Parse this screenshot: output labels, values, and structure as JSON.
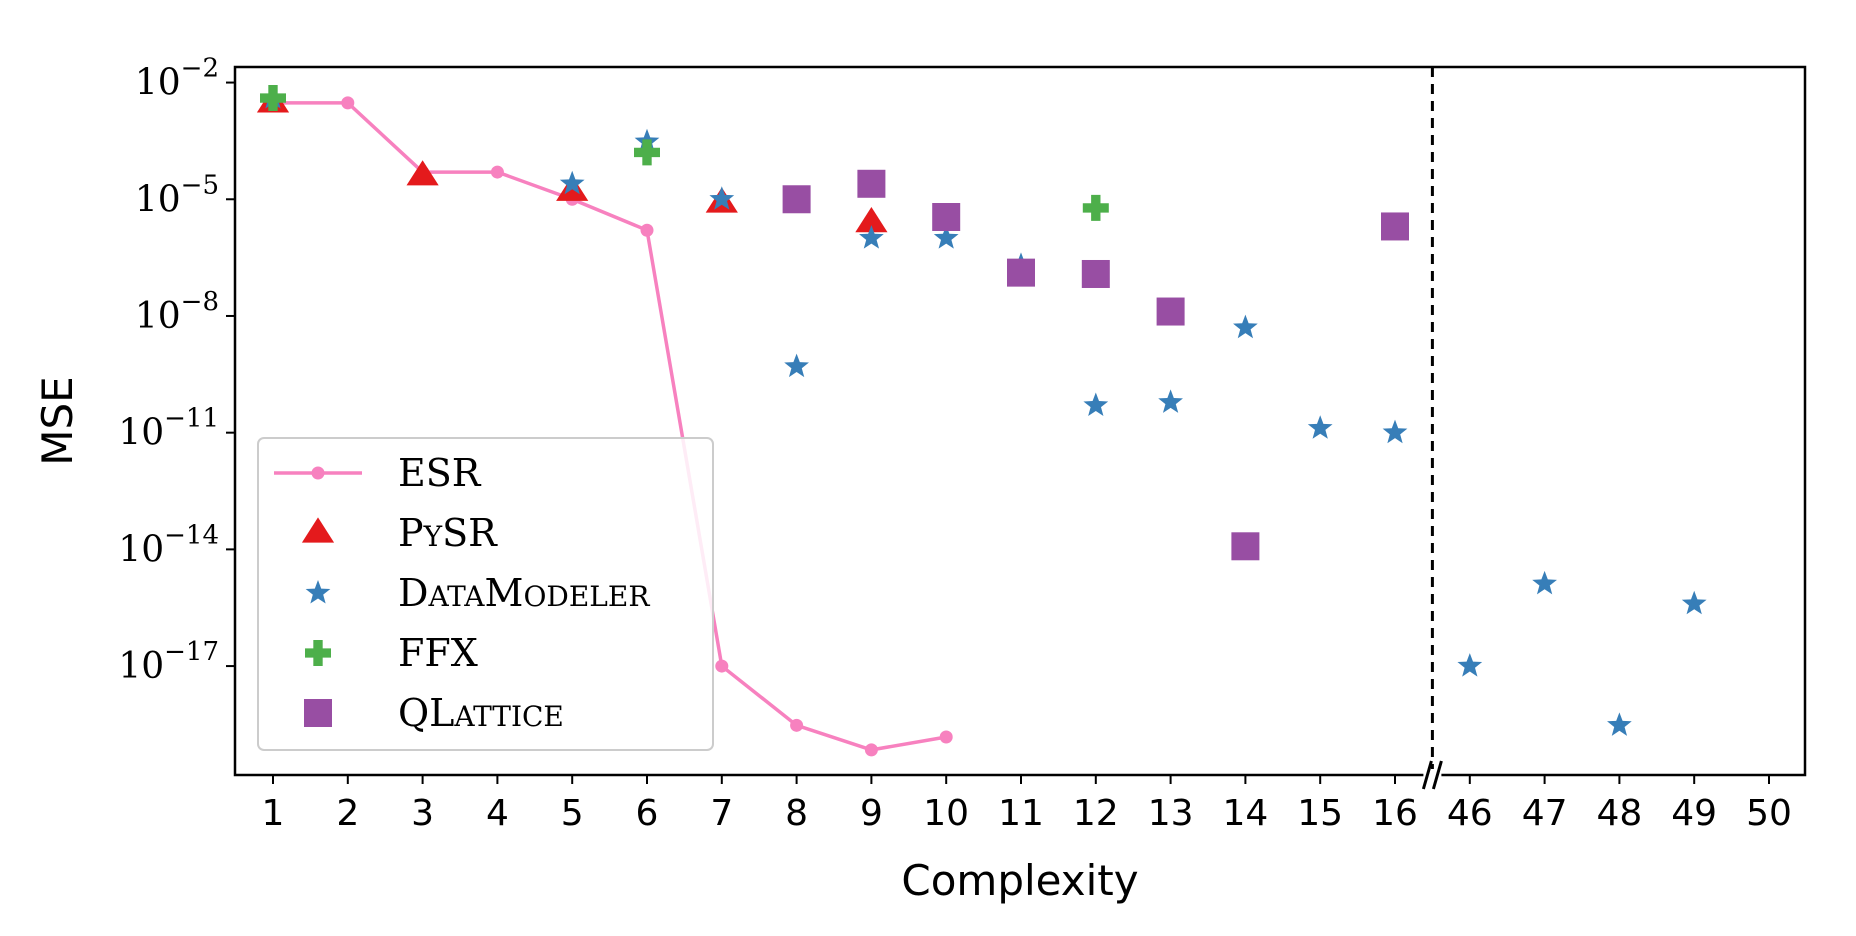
{
  "chart_data": {
    "type": "scatter",
    "xlabel": "Complexity",
    "ylabel": "MSE",
    "y_scale": "log",
    "ylim_exponents": [
      -19.8,
      -1.6
    ],
    "yticks": [
      {
        "base": "10",
        "exp": "−2",
        "value": -2
      },
      {
        "base": "10",
        "exp": "−5",
        "value": -5
      },
      {
        "base": "10",
        "exp": "−8",
        "value": -8
      },
      {
        "base": "10",
        "exp": "−11",
        "value": -11
      },
      {
        "base": "10",
        "exp": "−14",
        "value": -14
      },
      {
        "base": "10",
        "exp": "−17",
        "value": -17
      }
    ],
    "x_categories": [
      "1",
      "2",
      "3",
      "4",
      "5",
      "6",
      "7",
      "8",
      "9",
      "10",
      "11",
      "12",
      "13",
      "14",
      "15",
      "16",
      "46",
      "47",
      "48",
      "49",
      "50"
    ],
    "axis_break_between": [
      "16",
      "46"
    ],
    "legend_position": "lower-left",
    "grid": false,
    "series": [
      {
        "name": "ESR",
        "marker": "circle-line",
        "color": "#f781bf",
        "points": [
          {
            "x": "1",
            "y": 0.003
          },
          {
            "x": "2",
            "y": 0.003
          },
          {
            "x": "3",
            "y": 5e-05
          },
          {
            "x": "4",
            "y": 5e-05
          },
          {
            "x": "5",
            "y": 1e-05
          },
          {
            "x": "6",
            "y": 1.6e-06
          },
          {
            "x": "7",
            "y": 1e-17
          },
          {
            "x": "8",
            "y": 3e-19
          },
          {
            "x": "9",
            "y": 7e-20
          },
          {
            "x": "10",
            "y": 1.5e-19
          }
        ]
      },
      {
        "name": "PySR",
        "name_display": {
          "first": "P",
          "rest": "Y",
          "tail": "SR"
        },
        "marker": "triangle",
        "color": "#e41a1c",
        "points": [
          {
            "x": "1",
            "y": 0.003
          },
          {
            "x": "3",
            "y": 4e-05
          },
          {
            "x": "5",
            "y": 1.6e-05
          },
          {
            "x": "7",
            "y": 8e-06
          },
          {
            "x": "9",
            "y": 2.5e-06
          }
        ]
      },
      {
        "name": "DataModeler",
        "name_display": {
          "first": "D",
          "rest": "ATA",
          "mid": "M",
          "tail": "ODELER"
        },
        "marker": "star",
        "color": "#377eb8",
        "points": [
          {
            "x": "1",
            "y": 0.004
          },
          {
            "x": "5",
            "y": 2.5e-05
          },
          {
            "x": "6",
            "y": 0.0003
          },
          {
            "x": "7",
            "y": 1e-05
          },
          {
            "x": "9",
            "y": 1e-06
          },
          {
            "x": "10",
            "y": 1e-06
          },
          {
            "x": "11",
            "y": 2e-07
          },
          {
            "x": "8",
            "y": 5e-10
          },
          {
            "x": "12",
            "y": 5e-11
          },
          {
            "x": "13",
            "y": 6e-11
          },
          {
            "x": "14",
            "y": 5e-09
          },
          {
            "x": "15",
            "y": 1.3e-11
          },
          {
            "x": "16",
            "y": 1e-11
          },
          {
            "x": "46",
            "y": 1e-17
          },
          {
            "x": "47",
            "y": 1.3e-15
          },
          {
            "x": "48",
            "y": 3e-19
          },
          {
            "x": "49",
            "y": 4e-16
          }
        ]
      },
      {
        "name": "FFX",
        "marker": "plus",
        "color": "#4daf4a",
        "points": [
          {
            "x": "1",
            "y": 0.004
          },
          {
            "x": "6",
            "y": 0.00016
          },
          {
            "x": "12",
            "y": 6e-06
          }
        ]
      },
      {
        "name": "QLattice",
        "name_display": {
          "first": "QL",
          "rest": "ATTICE"
        },
        "marker": "square",
        "color": "#984ea3",
        "points": [
          {
            "x": "8",
            "y": 1e-05
          },
          {
            "x": "9",
            "y": 2.5e-05
          },
          {
            "x": "10",
            "y": 3.5e-06
          },
          {
            "x": "11",
            "y": 1.3e-07
          },
          {
            "x": "12",
            "y": 1.2e-07
          },
          {
            "x": "13",
            "y": 1.3e-08
          },
          {
            "x": "14",
            "y": 1.2e-14
          },
          {
            "x": "16",
            "y": 2e-06
          }
        ]
      }
    ]
  }
}
